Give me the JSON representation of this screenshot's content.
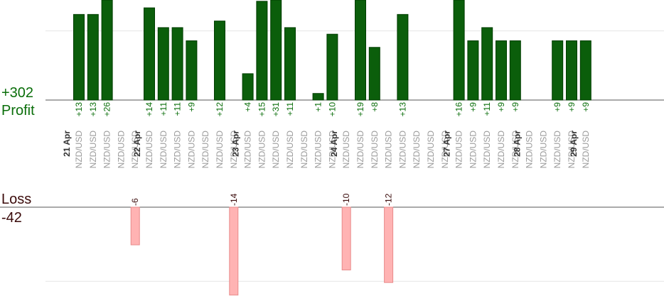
{
  "summary": {
    "profit_total": "+302",
    "profit_label": "Profit",
    "loss_label": "Loss",
    "loss_total": "-42"
  },
  "colors": {
    "profit_bar": "#0b5e0b",
    "profit_bar_edge": "#003d00",
    "profit_text": "#0a6e0a",
    "loss_bar": "#ffb3b3",
    "loss_bar_edge": "#e88a8a",
    "loss_text": "#3a0a0a",
    "pair_text": "#9a9a9a",
    "date_text": "#333333",
    "axis": "#555555",
    "grid": "#e6e6e6"
  },
  "chart_data": {
    "type": "bar",
    "series": [
      {
        "name": "Profit",
        "values": [
          13,
          13,
          26,
          null,
          null,
          14,
          11,
          11,
          9,
          null,
          12,
          null,
          4,
          15,
          31,
          11,
          null,
          1,
          10,
          null,
          19,
          8,
          null,
          13,
          null,
          null,
          null,
          16,
          9,
          11,
          9,
          9,
          null,
          null,
          9,
          9,
          9
        ]
      },
      {
        "name": "Loss",
        "values": [
          null,
          null,
          null,
          null,
          -6,
          null,
          null,
          null,
          null,
          null,
          null,
          -14,
          null,
          null,
          null,
          null,
          null,
          null,
          null,
          -10,
          null,
          null,
          -12,
          null,
          null,
          null,
          null,
          null,
          null,
          null,
          null,
          null,
          null,
          null,
          null,
          null,
          null
        ]
      }
    ],
    "categories": [
      "NZD/USD",
      "NZD/USD",
      "NZD/USD",
      "NZD/USD",
      "NZD/USD",
      "NZD/USD",
      "NZD/USD",
      "NZD/USD",
      "NZD/USD",
      "NZD/USD",
      "NZD/USD",
      "NZD/USD",
      "NZD/USD",
      "NZD/USD",
      "NZD/USD",
      "NZD/USD",
      "NZD/USD",
      "NZD/USD",
      "NZD/USD",
      "NZD/USD",
      "NZD/USD",
      "NZD/USD",
      "NZD/USD",
      "NZD/USD",
      "NZD/USD",
      "NZD/USD",
      "NZD/USD",
      "NZD/USD",
      "NZD/USD",
      "NZD/USD",
      "NZD/USD",
      "NZD/USD",
      "NZD/USD",
      "NZD/USD",
      "NZD/USD",
      "NZD/USD",
      "NZD/USD"
    ],
    "date_labels": [
      "21 Apr",
      "22 Apr",
      "23 Apr",
      "24 Apr",
      "27 Apr",
      "28 Apr",
      "29 Apr"
    ],
    "data_labels": [
      "+13",
      "+13",
      "+26",
      "",
      "-6",
      "+14",
      "+11",
      "+11",
      "+9",
      "",
      "+12",
      "-14",
      "+4",
      "+15",
      "+31",
      "+11",
      "",
      "+1",
      "+10",
      "-10",
      "+19",
      "+8",
      "-12",
      "+13",
      "",
      "",
      "",
      "+16",
      "+9",
      "+11",
      "+9",
      "+9",
      "",
      "",
      "+9",
      "+9",
      "+9"
    ],
    "profit_ylim": [
      0,
      12.5
    ],
    "loss_ylim": [
      -13,
      0
    ],
    "profit_gridline": 10.5,
    "loss_gridline": -11.8
  }
}
